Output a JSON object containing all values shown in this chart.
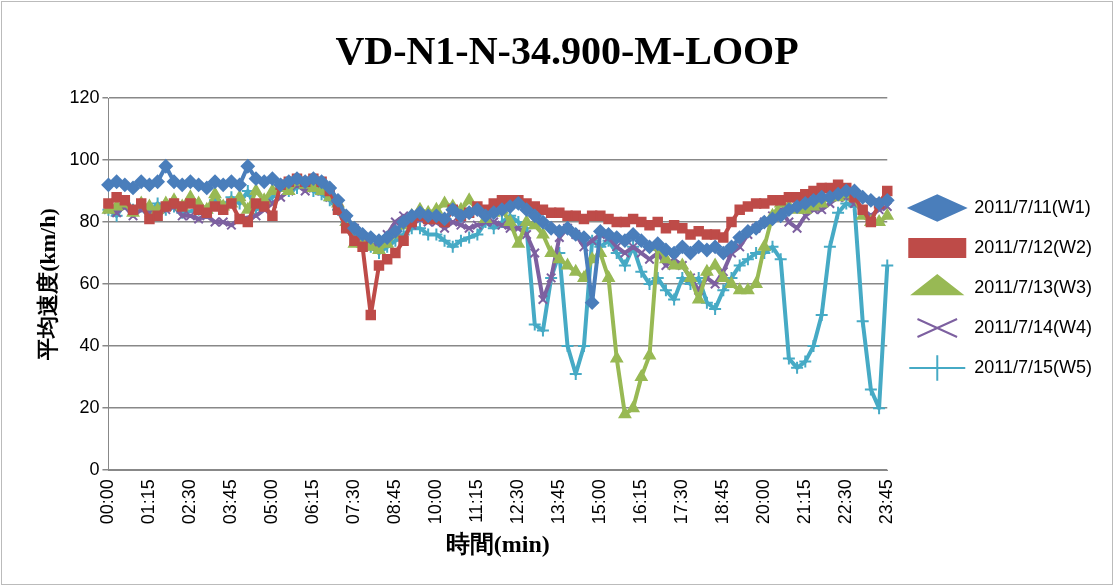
{
  "chart_data": {
    "type": "line",
    "title": "VD-N1-N-34.900-M-LOOP",
    "xlabel": "時間(min)",
    "ylabel": "平均速度(km/h)",
    "categories": [
      "00:00",
      null,
      null,
      null,
      null,
      "01:15",
      null,
      null,
      null,
      null,
      "02:30",
      null,
      null,
      null,
      null,
      "03:45",
      null,
      null,
      null,
      null,
      "05:00",
      null,
      null,
      null,
      null,
      "06:15",
      null,
      null,
      null,
      null,
      "07:30",
      null,
      null,
      null,
      null,
      "08:45",
      null,
      null,
      null,
      null,
      "10:00",
      null,
      null,
      null,
      null,
      "11:15",
      null,
      null,
      null,
      null,
      "12:30",
      null,
      null,
      null,
      null,
      "13:45",
      null,
      null,
      null,
      null,
      "15:00",
      null,
      null,
      null,
      null,
      "16:15",
      null,
      null,
      null,
      null,
      "17:30",
      null,
      null,
      null,
      null,
      "18:45",
      null,
      null,
      null,
      null,
      "20:00",
      null,
      null,
      null,
      null,
      "21:15",
      null,
      null,
      null,
      null,
      "22:30",
      null,
      null,
      null,
      null,
      "23:45"
    ],
    "ylim": [
      0,
      120
    ],
    "yticks": [
      0,
      20,
      40,
      60,
      80,
      100,
      120
    ],
    "grid": "y",
    "legend": "right",
    "series": [
      {
        "name": "2011/7/11(W1)",
        "color": "#4a7ebb",
        "marker": "diamond",
        "values": [
          92,
          93,
          92,
          91,
          93,
          92,
          93,
          98,
          93,
          92,
          93,
          92,
          91,
          93,
          92,
          93,
          92,
          98,
          94,
          93,
          94,
          92,
          93,
          94,
          93,
          94,
          93,
          91,
          87,
          82,
          78,
          76,
          75,
          74,
          75,
          77,
          80,
          82,
          83,
          82,
          82,
          81,
          84,
          82,
          83,
          84,
          82,
          83,
          84,
          85,
          86,
          84,
          82,
          80,
          78,
          77,
          78,
          76,
          75,
          54,
          77,
          76,
          75,
          74,
          76,
          74,
          72,
          73,
          71,
          70,
          72,
          70,
          72,
          71,
          72,
          70,
          72,
          75,
          77,
          78,
          80,
          81,
          82,
          84,
          85,
          86,
          87,
          88,
          88,
          89,
          90,
          90,
          88,
          87,
          86,
          87
        ]
      },
      {
        "name": "2011/7/12(W2)",
        "color": "#be4b48",
        "marker": "square",
        "values": [
          86,
          88,
          87,
          84,
          86,
          81,
          82,
          85,
          86,
          85,
          86,
          84,
          83,
          85,
          84,
          86,
          81,
          80,
          86,
          85,
          82,
          92,
          93,
          94,
          93,
          94,
          93,
          90,
          84,
          78,
          74,
          72,
          50,
          66,
          68,
          70,
          74,
          80,
          82,
          81,
          81,
          80,
          84,
          82,
          83,
          85,
          84,
          86,
          87,
          87,
          87,
          86,
          85,
          84,
          83,
          83,
          82,
          82,
          81,
          82,
          82,
          81,
          80,
          80,
          81,
          80,
          79,
          80,
          78,
          79,
          78,
          76,
          77,
          76,
          76,
          75,
          80,
          84,
          85,
          86,
          86,
          87,
          87,
          88,
          88,
          89,
          90,
          91,
          91,
          92,
          91,
          88,
          84,
          80,
          86,
          90
        ]
      },
      {
        "name": "2011/7/13(W3)",
        "color": "#98b954",
        "marker": "triangle",
        "values": [
          84,
          85,
          86,
          83,
          86,
          85,
          84,
          86,
          87,
          85,
          88,
          86,
          84,
          89,
          85,
          86,
          88,
          84,
          90,
          87,
          90,
          91,
          90,
          93,
          92,
          91,
          90,
          88,
          86,
          80,
          73,
          73,
          72,
          71,
          73,
          76,
          79,
          82,
          84,
          83,
          84,
          86,
          85,
          84,
          87,
          84,
          81,
          83,
          84,
          80,
          73,
          80,
          79,
          76,
          70,
          68,
          66,
          64,
          62,
          68,
          70,
          62,
          36,
          18,
          20,
          30,
          37,
          72,
          68,
          66,
          66,
          62,
          55,
          64,
          66,
          62,
          60,
          58,
          58,
          60,
          72,
          82,
          86,
          85,
          84,
          84,
          85,
          86,
          88,
          88,
          89,
          88,
          82,
          80,
          80,
          82
        ]
      },
      {
        "name": "2011/7/14(W4)",
        "color": "#7d60a0",
        "marker": "cross",
        "values": [
          84,
          83,
          85,
          82,
          84,
          83,
          82,
          84,
          85,
          82,
          82,
          81,
          82,
          80,
          80,
          79,
          81,
          null,
          82,
          84,
          86,
          88,
          90,
          92,
          90,
          91,
          90,
          88,
          85,
          80,
          78,
          75,
          72,
          73,
          76,
          80,
          82,
          79,
          81,
          80,
          80,
          78,
          80,
          79,
          78,
          79,
          80,
          80,
          79,
          78,
          78,
          76,
          70,
          55,
          62,
          75,
          78,
          76,
          72,
          74,
          76,
          75,
          72,
          70,
          72,
          70,
          68,
          70,
          66,
          68,
          66,
          62,
          58,
          62,
          60,
          64,
          70,
          72,
          76,
          78,
          80,
          82,
          84,
          80,
          78,
          82,
          84,
          84,
          86,
          88,
          88,
          86,
          84,
          82,
          84,
          85
        ]
      },
      {
        "name": "2011/7/15(W5)",
        "color": "#46aac5",
        "marker": "cross",
        "values": [
          84,
          82,
          86,
          84,
          85,
          83,
          86,
          84,
          85,
          83,
          null,
          84,
          83,
          87,
          85,
          88,
          86,
          90,
          84,
          86,
          88,
          92,
          90,
          91,
          92,
          90,
          89,
          87,
          84,
          80,
          76,
          74,
          72,
          70,
          72,
          74,
          76,
          78,
          78,
          76,
          76,
          74,
          72,
          74,
          75,
          76,
          80,
          78,
          80,
          82,
          80,
          78,
          47,
          45,
          62,
          70,
          40,
          31,
          40,
          74,
          72,
          74,
          70,
          66,
          72,
          64,
          60,
          62,
          58,
          55,
          62,
          60,
          62,
          54,
          52,
          58,
          62,
          66,
          68,
          70,
          70,
          72,
          68,
          36,
          33,
          35,
          40,
          50,
          72,
          83,
          86,
          85,
          48,
          26,
          20,
          66
        ]
      }
    ]
  }
}
